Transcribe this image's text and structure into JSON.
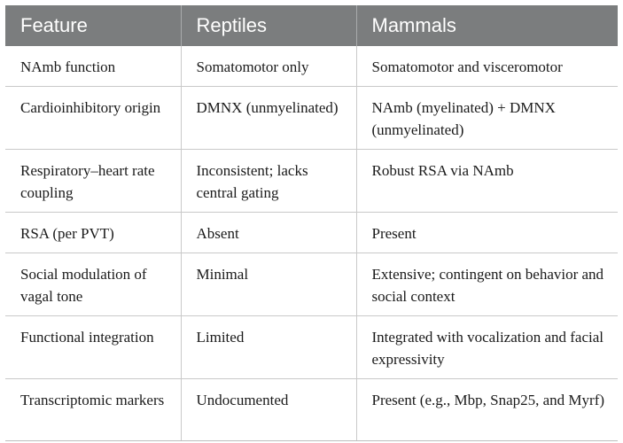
{
  "table": {
    "headers": [
      "Feature",
      "Reptiles",
      "Mammals"
    ],
    "rows": [
      {
        "feature": "NAmb function",
        "reptiles": "Somatomotor only",
        "mammals": "Somatomotor and visceromotor"
      },
      {
        "feature": "Cardioinhibitory origin",
        "reptiles": "DMNX (unmyelinated)",
        "mammals": "NAmb (myelinated) + DMNX (unmyelinated)"
      },
      {
        "feature": "Respiratory–heart rate coupling",
        "reptiles": "Inconsistent; lacks central gating",
        "mammals": "Robust RSA via NAmb"
      },
      {
        "feature": "RSA (per PVT)",
        "reptiles": "Absent",
        "mammals": "Present"
      },
      {
        "feature": "Social modulation of vagal tone",
        "reptiles": "Minimal",
        "mammals": "Extensive; contingent on behavior and social context"
      },
      {
        "feature": "Functional integration",
        "reptiles": "Limited",
        "mammals": "Integrated with vocalization and facial expressivity"
      },
      {
        "feature": "Transcriptomic markers",
        "reptiles": "Undocumented",
        "mammals": "Present (e.g., Mbp, Snap25, and Myrf)"
      }
    ]
  }
}
